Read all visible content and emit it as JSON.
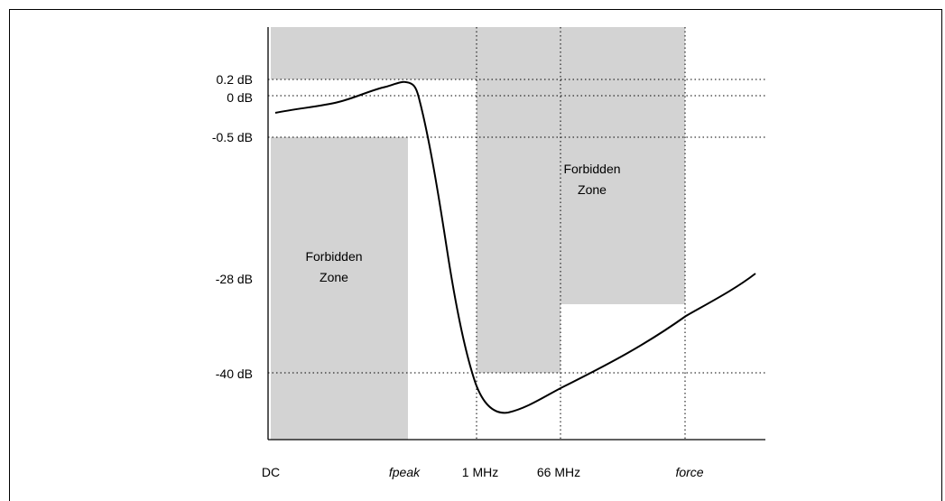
{
  "y_labels": {
    "db_0_2": "0.2 dB",
    "db_0": "0 dB",
    "db_m0_5": "-0.5 dB",
    "db_m28": "-28 dB",
    "db_m40": "-40 dB"
  },
  "x_labels": {
    "dc": "DC",
    "fpeak": "fpeak",
    "one_mhz": "1 MHz",
    "sixty_six_mhz": "66 MHz",
    "force": "force"
  },
  "zones": {
    "left_line1": "Forbidden",
    "left_line2": "Zone",
    "right_line1": "Forbidden",
    "right_line2": "Zone"
  },
  "colors": {
    "zone_fill": "#d3d3d3",
    "line": "#000000"
  }
}
